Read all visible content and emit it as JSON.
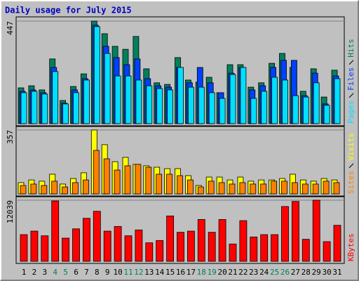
{
  "chart_data": [
    {
      "type": "bar",
      "title": "Daily usage for July 2015",
      "ylim": [
        0,
        447
      ],
      "yticks": [
        447
      ],
      "series": [
        {
          "name": "Hits",
          "color": "#00805c",
          "values": [
            156,
            165,
            147,
            282,
            101,
            162,
            217,
            447,
            392,
            337,
            324,
            380,
            239,
            178,
            171,
            288,
            190,
            181,
            202,
            135,
            257,
            257,
            159,
            178,
            263,
            306,
            245,
            141,
            239,
            116,
            233
          ]
        },
        {
          "name": "Files",
          "color": "#0040ff",
          "values": [
            141,
            147,
            135,
            245,
            89,
            147,
            196,
            429,
            337,
            288,
            257,
            282,
            196,
            165,
            159,
            245,
            178,
            245,
            178,
            135,
            220,
            245,
            147,
            165,
            245,
            276,
            276,
            122,
            220,
            86,
            208
          ]
        },
        {
          "name": "Pages",
          "color": "#00e0ff",
          "values": [
            135,
            141,
            129,
            227,
            86,
            135,
            190,
            423,
            306,
            208,
            208,
            190,
            165,
            153,
            147,
            245,
            159,
            159,
            135,
            110,
            214,
            245,
            110,
            141,
            202,
            190,
            122,
            116,
            178,
            80,
            196
          ]
        }
      ]
    },
    {
      "type": "bar",
      "ylim": [
        0,
        357
      ],
      "yticks": [
        357
      ],
      "series": [
        {
          "name": "Visits",
          "color": "#ffff00",
          "values": [
            63,
            78,
            71,
            110,
            55,
            86,
            118,
            357,
            275,
            180,
            204,
            165,
            157,
            149,
            141,
            141,
            102,
            47,
            94,
            94,
            78,
            94,
            71,
            78,
            78,
            86,
            110,
            78,
            71,
            86,
            78
          ]
        },
        {
          "name": "Sites",
          "color": "#ff8000",
          "values": [
            47,
            55,
            47,
            71,
            39,
            63,
            78,
            243,
            196,
            133,
            157,
            165,
            149,
            110,
            110,
            102,
            78,
            39,
            71,
            63,
            55,
            63,
            55,
            55,
            71,
            71,
            63,
            55,
            55,
            71,
            63
          ]
        }
      ]
    },
    {
      "type": "bar",
      "ylim": [
        0,
        12039
      ],
      "yticks": [
        12039
      ],
      "categories": [
        "1",
        "2",
        "3",
        "4",
        "5",
        "6",
        "7",
        "8",
        "9",
        "10",
        "11",
        "12",
        "13",
        "14",
        "15",
        "16",
        "17",
        "18",
        "19",
        "20",
        "21",
        "22",
        "23",
        "24",
        "25",
        "26",
        "27",
        "28",
        "29",
        "30",
        "31"
      ],
      "category_colors": [
        "#000000",
        "#000000",
        "#000000",
        "#00805c",
        "#00805c",
        "#000000",
        "#000000",
        "#000000",
        "#000000",
        "#000000",
        "#00805c",
        "#00805c",
        "#000000",
        "#000000",
        "#000000",
        "#000000",
        "#000000",
        "#00805c",
        "#00805c",
        "#000000",
        "#000000",
        "#000000",
        "#000000",
        "#000000",
        "#00805c",
        "#00805c",
        "#000000",
        "#000000",
        "#000000",
        "#000000",
        "#000000"
      ],
      "series": [
        {
          "name": "KBytes",
          "color": "#ff0000",
          "values": [
            5258,
            5949,
            5031,
            11900,
            4570,
            6402,
            8476,
            9860,
            5949,
            6872,
            5031,
            6180,
            3647,
            4108,
            8940,
            5720,
            5949,
            8245,
            5720,
            8245,
            3417,
            8015,
            4800,
            5258,
            5258,
            10800,
            11800,
            4339,
            12039,
            3878,
            7094
          ]
        }
      ]
    }
  ]
}
